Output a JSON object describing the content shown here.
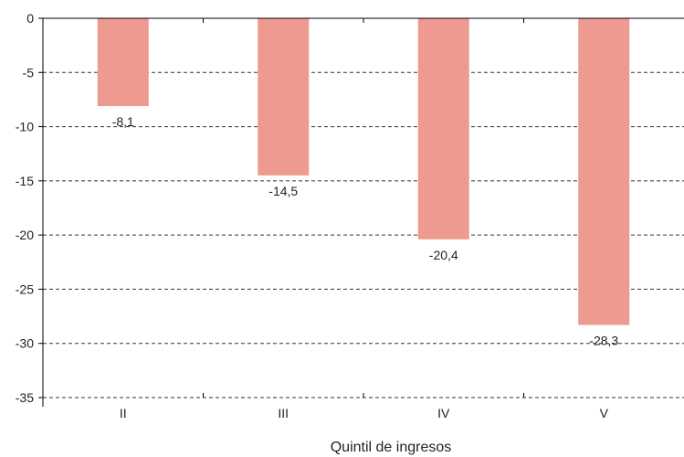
{
  "chart_data": {
    "type": "bar",
    "title": "",
    "xlabel": "Quintil de ingresos",
    "ylabel": "",
    "categories": [
      "II",
      "III",
      "IV",
      "V"
    ],
    "values": [
      -8.1,
      -14.5,
      -20.4,
      -28.3
    ],
    "value_labels": [
      "-8,1",
      "-14,5",
      "-20,4",
      "-28,3"
    ],
    "ylim": [
      -35,
      0
    ],
    "yticks": [
      0,
      -5,
      -10,
      -15,
      -20,
      -25,
      -30,
      -35
    ],
    "ytick_labels": [
      "0",
      "-5",
      "-10",
      "-15",
      "-20",
      "-25",
      "-30",
      "-35"
    ],
    "grid": true,
    "grid_style": "dashed",
    "bar_color": "#ee9a90",
    "axis_color": "#000000",
    "grid_color": "#333333"
  }
}
